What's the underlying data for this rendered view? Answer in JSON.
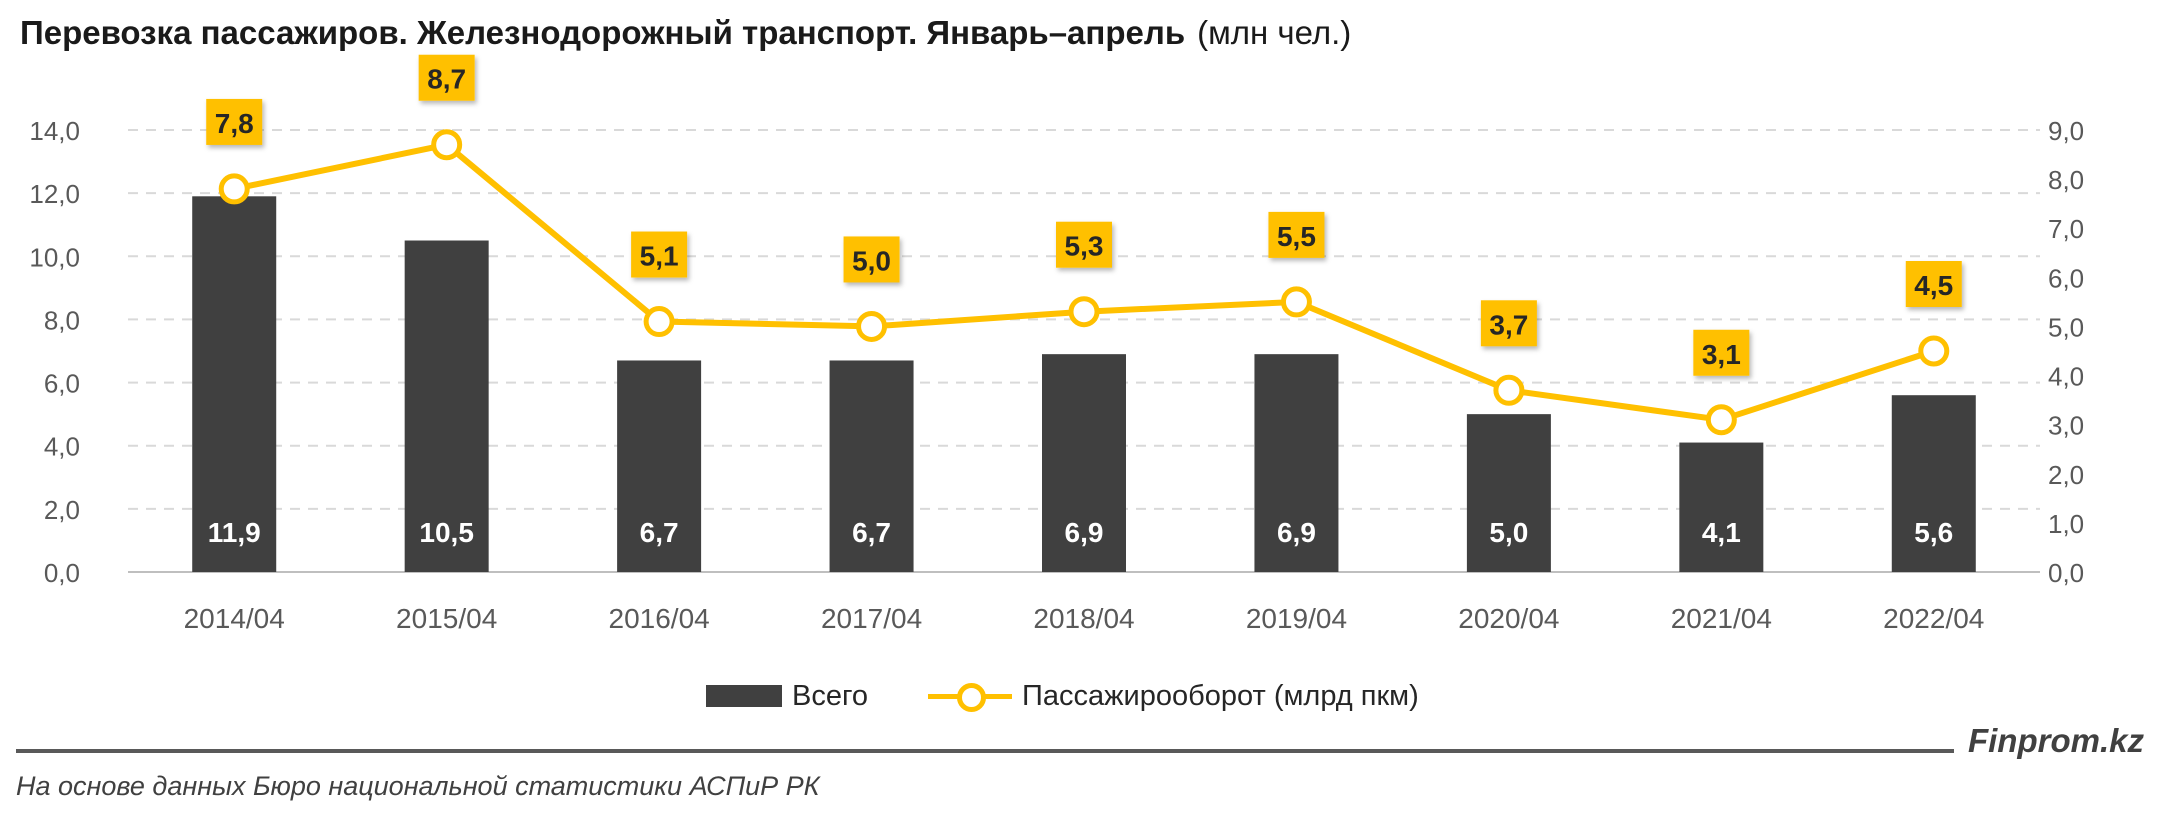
{
  "header": {
    "title": "Перевозка пассажиров. Железнодорожный транспорт. Январь–апрель",
    "unit": "(млн чел.)"
  },
  "footer": {
    "brand": "Finprom.kz",
    "source": "На основе данных Бюро национальной статистики АСПиР РК"
  },
  "colors": {
    "bars": "#404040",
    "line": "#FFC000",
    "grid": "#d9d9d9",
    "axis_text": "#595959"
  },
  "chart_data": {
    "type": "bar+line",
    "categories": [
      "2014/04",
      "2015/04",
      "2016/04",
      "2017/04",
      "2018/04",
      "2019/04",
      "2020/04",
      "2021/04",
      "2022/04"
    ],
    "series": [
      {
        "name": "Всего",
        "type": "bar",
        "axis": "left",
        "values": [
          11.9,
          10.5,
          6.7,
          6.7,
          6.9,
          6.9,
          5.0,
          4.1,
          5.6
        ],
        "labels": [
          "11,9",
          "10,5",
          "6,7",
          "6,7",
          "6,9",
          "6,9",
          "5,0",
          "4,1",
          "5,6"
        ]
      },
      {
        "name": "Пассажирооборот (млрд пкм)",
        "type": "line",
        "axis": "right",
        "values": [
          7.8,
          8.7,
          5.1,
          5.0,
          5.3,
          5.5,
          3.7,
          3.1,
          4.5
        ],
        "labels": [
          "7,8",
          "8,7",
          "5,1",
          "5,0",
          "5,3",
          "5,5",
          "3,7",
          "3,1",
          "4,5"
        ]
      }
    ],
    "left_axis": {
      "min": 0,
      "max": 14,
      "ticks": [
        "0,0",
        "2,0",
        "4,0",
        "6,0",
        "8,0",
        "10,0",
        "12,0",
        "14,0"
      ]
    },
    "right_axis": {
      "min": 0,
      "max": 9,
      "ticks": [
        "0,0",
        "1,0",
        "2,0",
        "3,0",
        "4,0",
        "5,0",
        "6,0",
        "7,0",
        "8,0",
        "9,0"
      ]
    },
    "grid": true,
    "legend_position": "bottom"
  }
}
